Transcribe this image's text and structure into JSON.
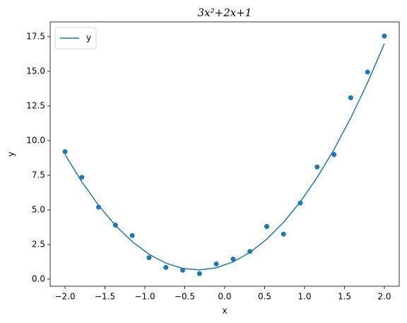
{
  "chart_data": {
    "type": "line",
    "title": "3x²+2x+1",
    "x_label": "x",
    "y_label": "y",
    "x": [
      -2.0,
      -1.7895,
      -1.5789,
      -1.3684,
      -1.1579,
      -0.9474,
      -0.7368,
      -0.5263,
      -0.3158,
      -0.1053,
      0.1053,
      0.3158,
      0.5263,
      0.7368,
      0.9474,
      1.1579,
      1.3684,
      1.5789,
      1.7895,
      2.0
    ],
    "series": [
      {
        "name": "y",
        "type": "line",
        "color": "#1f77b4",
        "values": [
          9.0,
          7.028,
          5.321,
          3.878,
          2.706,
          1.799,
          1.155,
          0.778,
          0.668,
          0.823,
          1.244,
          1.931,
          2.884,
          4.102,
          5.587,
          7.338,
          9.352,
          11.637,
          14.184,
          17.0
        ]
      },
      {
        "type": "scatter",
        "color": "#1f77b4",
        "values": [
          9.2,
          7.35,
          5.2,
          3.9,
          3.15,
          1.55,
          0.85,
          0.65,
          0.4,
          1.1,
          1.45,
          2.0,
          3.8,
          3.25,
          5.5,
          8.1,
          9.0,
          13.1,
          14.95,
          17.55
        ]
      }
    ],
    "xlim": [
      -2.186,
      2.186
    ],
    "ylim": [
      -0.51,
      18.57
    ],
    "xticks": [
      {
        "value": -2.0,
        "label": "−2.0"
      },
      {
        "value": -1.5,
        "label": "−1.5"
      },
      {
        "value": -1.0,
        "label": "−1.0"
      },
      {
        "value": -0.5,
        "label": "−0.5"
      },
      {
        "value": 0.0,
        "label": "0.0"
      },
      {
        "value": 0.5,
        "label": "0.5"
      },
      {
        "value": 1.0,
        "label": "1.0"
      },
      {
        "value": 1.5,
        "label": "1.5"
      },
      {
        "value": 2.0,
        "label": "2.0"
      }
    ],
    "yticks": [
      {
        "value": 0,
        "label": "0.0"
      },
      2.5,
      {
        "value": 5,
        "label": "5.0"
      },
      7.5,
      {
        "value": 10,
        "label": "10.0"
      },
      12.5,
      {
        "value": 15,
        "label": "15.0"
      },
      17.5
    ],
    "legend": "upper left"
  }
}
